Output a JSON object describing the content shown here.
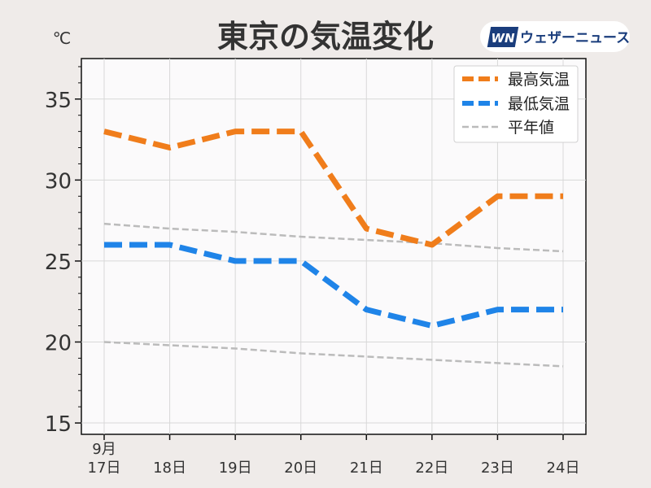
{
  "title": "東京の気温変化",
  "unit_label": "℃",
  "brand": {
    "name": "ウェザーニュース",
    "mark": "WN",
    "color": "#1a3d7c"
  },
  "chart_data": {
    "type": "line",
    "title": "東京の気温変化",
    "xlabel": "",
    "ylabel": "℃",
    "month_label": "9月",
    "categories": [
      "17日",
      "18日",
      "19日",
      "20日",
      "21日",
      "22日",
      "23日",
      "24日"
    ],
    "ylim": [
      14.3,
      37.5
    ],
    "yticks": [
      15,
      20,
      25,
      30,
      35
    ],
    "grid": true,
    "legend_position": "top-right",
    "series": [
      {
        "name": "最高気温",
        "values": [
          33,
          32,
          33,
          33,
          27,
          26,
          29,
          29
        ],
        "color": "#f07d1b",
        "style": "dashed-thick"
      },
      {
        "name": "最低気温",
        "values": [
          26,
          26,
          25,
          25,
          22,
          21,
          22,
          22
        ],
        "color": "#1f84e8",
        "style": "dashed-thick"
      }
    ],
    "normals": {
      "name": "平年値",
      "color": "#bbbbbb",
      "lines": [
        {
          "values": [
            27.3,
            27.0,
            26.8,
            26.5,
            26.3,
            26.1,
            25.8,
            25.6
          ]
        },
        {
          "values": [
            20.0,
            19.8,
            19.6,
            19.3,
            19.1,
            18.9,
            18.7,
            18.5
          ]
        }
      ]
    }
  }
}
